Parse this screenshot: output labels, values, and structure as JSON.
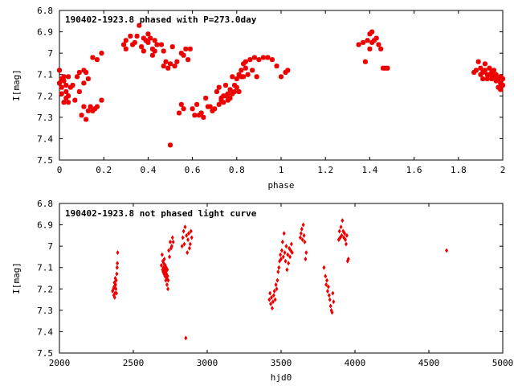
{
  "colors": {
    "points": "#ee0000",
    "frame": "#000000",
    "background": "#ffffff"
  },
  "chart_data": [
    {
      "type": "scatter",
      "title": "190402-1923.8 phased with P=273.0day",
      "xlabel": "phase",
      "ylabel": "I[mag]",
      "xlim": [
        0,
        2
      ],
      "ylim": [
        6.8,
        7.5
      ],
      "y_inverted": true,
      "grid": false,
      "x_ticks": [
        "0",
        "0.2",
        "0.4",
        "0.6",
        "0.8",
        "1",
        "1.2",
        "1.4",
        "1.6",
        "1.8",
        "2"
      ],
      "y_ticks": [
        "6.8",
        "6.9",
        "7",
        "7.1",
        "7.2",
        "7.3",
        "7.4",
        "7.5"
      ],
      "points": [
        [
          0.0,
          7.14
        ],
        [
          0.0,
          7.08
        ],
        [
          0.01,
          7.12
        ],
        [
          0.01,
          7.16
        ],
        [
          0.01,
          7.19
        ],
        [
          0.02,
          7.13
        ],
        [
          0.02,
          7.11
        ],
        [
          0.02,
          7.23
        ],
        [
          0.03,
          7.15
        ],
        [
          0.03,
          7.21
        ],
        [
          0.03,
          7.18
        ],
        [
          0.04,
          7.11
        ],
        [
          0.04,
          7.2
        ],
        [
          0.04,
          7.23
        ],
        [
          0.05,
          7.16
        ],
        [
          0.06,
          7.15
        ],
        [
          0.07,
          7.22
        ],
        [
          0.08,
          7.11
        ],
        [
          0.09,
          7.18
        ],
        [
          0.09,
          7.09
        ],
        [
          0.1,
          7.29
        ],
        [
          0.11,
          7.14
        ],
        [
          0.11,
          7.08
        ],
        [
          0.11,
          7.25
        ],
        [
          0.12,
          7.31
        ],
        [
          0.12,
          7.09
        ],
        [
          0.13,
          7.27
        ],
        [
          0.13,
          7.12
        ],
        [
          0.14,
          7.25
        ],
        [
          0.15,
          7.27
        ],
        [
          0.15,
          7.02
        ],
        [
          0.16,
          7.26
        ],
        [
          0.17,
          7.25
        ],
        [
          0.17,
          7.03
        ],
        [
          0.19,
          7.22
        ],
        [
          0.19,
          7.0
        ],
        [
          0.29,
          6.96
        ],
        [
          0.3,
          6.94
        ],
        [
          0.3,
          6.98
        ],
        [
          0.32,
          6.92
        ],
        [
          0.33,
          6.96
        ],
        [
          0.34,
          6.95
        ],
        [
          0.35,
          6.92
        ],
        [
          0.36,
          6.87
        ],
        [
          0.37,
          6.97
        ],
        [
          0.38,
          6.99
        ],
        [
          0.38,
          6.93
        ],
        [
          0.39,
          6.94
        ],
        [
          0.4,
          6.91
        ],
        [
          0.4,
          6.95
        ],
        [
          0.41,
          6.93
        ],
        [
          0.42,
          7.01
        ],
        [
          0.42,
          6.98
        ],
        [
          0.43,
          6.99
        ],
        [
          0.43,
          6.94
        ],
        [
          0.44,
          6.96
        ],
        [
          0.46,
          6.96
        ],
        [
          0.47,
          7.06
        ],
        [
          0.47,
          6.99
        ],
        [
          0.48,
          7.04
        ],
        [
          0.49,
          7.07
        ],
        [
          0.5,
          7.05
        ],
        [
          0.5,
          7.43
        ],
        [
          0.51,
          6.97
        ],
        [
          0.52,
          7.06
        ],
        [
          0.53,
          7.04
        ],
        [
          0.54,
          7.28
        ],
        [
          0.55,
          7.0
        ],
        [
          0.55,
          7.24
        ],
        [
          0.56,
          7.01
        ],
        [
          0.56,
          7.26
        ],
        [
          0.57,
          6.98
        ],
        [
          0.58,
          7.03
        ],
        [
          0.59,
          6.98
        ],
        [
          0.6,
          7.26
        ],
        [
          0.61,
          7.29
        ],
        [
          0.62,
          7.24
        ],
        [
          0.63,
          7.29
        ],
        [
          0.64,
          7.28
        ],
        [
          0.65,
          7.3
        ],
        [
          0.66,
          7.21
        ],
        [
          0.67,
          7.25
        ],
        [
          0.68,
          7.25
        ],
        [
          0.69,
          7.27
        ],
        [
          0.7,
          7.26
        ],
        [
          0.71,
          7.18
        ],
        [
          0.72,
          7.24
        ],
        [
          0.72,
          7.16
        ],
        [
          0.73,
          7.21
        ],
        [
          0.73,
          7.22
        ],
        [
          0.74,
          7.23
        ],
        [
          0.74,
          7.2
        ],
        [
          0.75,
          7.2
        ],
        [
          0.75,
          7.15
        ],
        [
          0.76,
          7.22
        ],
        [
          0.76,
          7.19
        ],
        [
          0.77,
          7.21
        ],
        [
          0.77,
          7.17
        ],
        [
          0.78,
          7.19
        ],
        [
          0.78,
          7.11
        ],
        [
          0.79,
          7.15
        ],
        [
          0.79,
          7.18
        ],
        [
          0.8,
          7.12
        ],
        [
          0.8,
          7.16
        ],
        [
          0.81,
          7.1
        ],
        [
          0.81,
          7.18
        ],
        [
          0.82,
          7.08
        ],
        [
          0.82,
          7.11
        ],
        [
          0.83,
          7.05
        ],
        [
          0.83,
          7.11
        ],
        [
          0.84,
          7.04
        ],
        [
          0.84,
          7.07
        ],
        [
          0.85,
          7.1
        ],
        [
          0.86,
          7.03
        ],
        [
          0.87,
          7.08
        ],
        [
          0.88,
          7.02
        ],
        [
          0.89,
          7.11
        ],
        [
          0.9,
          7.03
        ],
        [
          0.92,
          7.02
        ],
        [
          0.94,
          7.02
        ],
        [
          0.96,
          7.03
        ],
        [
          0.98,
          7.06
        ],
        [
          1.0,
          7.11
        ],
        [
          1.02,
          7.09
        ],
        [
          1.03,
          7.08
        ],
        [
          1.35,
          6.96
        ],
        [
          1.37,
          6.95
        ],
        [
          1.38,
          7.04
        ],
        [
          1.39,
          6.94
        ],
        [
          1.4,
          6.91
        ],
        [
          1.4,
          6.98
        ],
        [
          1.41,
          6.9
        ],
        [
          1.41,
          6.95
        ],
        [
          1.42,
          6.94
        ],
        [
          1.43,
          6.93
        ],
        [
          1.44,
          6.96
        ],
        [
          1.45,
          6.98
        ],
        [
          1.46,
          7.07
        ],
        [
          1.47,
          7.07
        ],
        [
          1.48,
          7.07
        ],
        [
          1.87,
          7.09
        ],
        [
          1.88,
          7.08
        ],
        [
          1.89,
          7.04
        ],
        [
          1.9,
          7.07
        ],
        [
          1.9,
          7.1
        ],
        [
          1.91,
          7.09
        ],
        [
          1.91,
          7.12
        ],
        [
          1.92,
          7.05
        ],
        [
          1.92,
          7.08
        ],
        [
          1.93,
          7.1
        ],
        [
          1.93,
          7.12
        ],
        [
          1.94,
          7.07
        ],
        [
          1.94,
          7.1
        ],
        [
          1.95,
          7.09
        ],
        [
          1.95,
          7.12
        ],
        [
          1.96,
          7.11
        ],
        [
          1.96,
          7.08
        ],
        [
          1.97,
          7.1
        ],
        [
          1.97,
          7.13
        ],
        [
          1.98,
          7.12
        ],
        [
          1.98,
          7.16
        ],
        [
          1.99,
          7.14
        ],
        [
          1.99,
          7.11
        ],
        [
          2.0,
          7.12
        ],
        [
          2.0,
          7.15
        ],
        [
          1.99,
          7.17
        ]
      ]
    },
    {
      "type": "scatter",
      "title": "190402-1923.8 not phased light curve",
      "xlabel": "hjd0",
      "ylabel": "I[mag]",
      "xlim": [
        2000,
        5000
      ],
      "ylim": [
        6.8,
        7.5
      ],
      "y_inverted": true,
      "grid": false,
      "x_ticks": [
        "2000",
        "2500",
        "3000",
        "3500",
        "4000",
        "4500",
        "5000"
      ],
      "y_ticks": [
        "6.8",
        "6.9",
        "7",
        "7.1",
        "7.2",
        "7.3",
        "7.4",
        "7.5"
      ],
      "points": [
        [
          2360,
          7.21
        ],
        [
          2365,
          7.2
        ],
        [
          2368,
          7.23
        ],
        [
          2370,
          7.19
        ],
        [
          2372,
          7.17
        ],
        [
          2374,
          7.24
        ],
        [
          2376,
          7.22
        ],
        [
          2378,
          7.15
        ],
        [
          2380,
          7.18
        ],
        [
          2382,
          7.2
        ],
        [
          2384,
          7.16
        ],
        [
          2386,
          7.22
        ],
        [
          2388,
          7.13
        ],
        [
          2390,
          7.1
        ],
        [
          2392,
          7.08
        ],
        [
          2394,
          7.03
        ],
        [
          2690,
          7.09
        ],
        [
          2695,
          7.04
        ],
        [
          2698,
          7.11
        ],
        [
          2700,
          7.07
        ],
        [
          2702,
          7.12
        ],
        [
          2704,
          7.1
        ],
        [
          2706,
          7.08
        ],
        [
          2708,
          7.13
        ],
        [
          2710,
          7.06
        ],
        [
          2712,
          7.11
        ],
        [
          2714,
          7.14
        ],
        [
          2716,
          7.09
        ],
        [
          2718,
          7.12
        ],
        [
          2720,
          7.16
        ],
        [
          2722,
          7.1
        ],
        [
          2724,
          7.13
        ],
        [
          2726,
          7.15
        ],
        [
          2728,
          7.18
        ],
        [
          2730,
          7.11
        ],
        [
          2732,
          7.14
        ],
        [
          2734,
          7.2
        ],
        [
          2736,
          7.16
        ],
        [
          2740,
          7.02
        ],
        [
          2745,
          7.05
        ],
        [
          2750,
          6.98
        ],
        [
          2755,
          7.01
        ],
        [
          2760,
          7.0
        ],
        [
          2765,
          6.96
        ],
        [
          2770,
          6.98
        ],
        [
          2830,
          7.0
        ],
        [
          2835,
          6.96
        ],
        [
          2840,
          6.93
        ],
        [
          2845,
          6.99
        ],
        [
          2850,
          6.91
        ],
        [
          2855,
          7.43
        ],
        [
          2860,
          6.95
        ],
        [
          2865,
          7.03
        ],
        [
          2870,
          6.97
        ],
        [
          2875,
          6.94
        ],
        [
          2880,
          7.01
        ],
        [
          2885,
          6.99
        ],
        [
          2890,
          6.93
        ],
        [
          2895,
          6.96
        ],
        [
          3420,
          7.25
        ],
        [
          3425,
          7.22
        ],
        [
          3430,
          7.27
        ],
        [
          3435,
          7.24
        ],
        [
          3440,
          7.29
        ],
        [
          3445,
          7.26
        ],
        [
          3450,
          7.23
        ],
        [
          3455,
          7.21
        ],
        [
          3460,
          7.25
        ],
        [
          3465,
          7.18
        ],
        [
          3470,
          7.2
        ],
        [
          3475,
          7.16
        ],
        [
          3480,
          7.12
        ],
        [
          3485,
          7.1
        ],
        [
          3490,
          7.07
        ],
        [
          3495,
          7.04
        ],
        [
          3500,
          7.06
        ],
        [
          3505,
          7.02
        ],
        [
          3510,
          6.98
        ],
        [
          3515,
          7.05
        ],
        [
          3520,
          6.94
        ],
        [
          3525,
          7.03
        ],
        [
          3530,
          7.07
        ],
        [
          3535,
          7.0
        ],
        [
          3540,
          7.11
        ],
        [
          3545,
          7.04
        ],
        [
          3550,
          7.08
        ],
        [
          3555,
          7.01
        ],
        [
          3560,
          7.05
        ],
        [
          3565,
          7.02
        ],
        [
          3570,
          6.99
        ],
        [
          3575,
          7.03
        ],
        [
          3630,
          6.96
        ],
        [
          3635,
          6.94
        ],
        [
          3640,
          6.92
        ],
        [
          3645,
          6.97
        ],
        [
          3650,
          6.9
        ],
        [
          3655,
          6.95
        ],
        [
          3660,
          6.98
        ],
        [
          3665,
          7.06
        ],
        [
          3670,
          7.03
        ],
        [
          3790,
          7.1
        ],
        [
          3800,
          7.14
        ],
        [
          3805,
          7.18
        ],
        [
          3810,
          7.16
        ],
        [
          3815,
          7.21
        ],
        [
          3820,
          7.19
        ],
        [
          3825,
          7.23
        ],
        [
          3830,
          7.25
        ],
        [
          3835,
          7.28
        ],
        [
          3840,
          7.3
        ],
        [
          3845,
          7.31
        ],
        [
          3850,
          7.22
        ],
        [
          3855,
          7.26
        ],
        [
          3890,
          6.97
        ],
        [
          3895,
          6.93
        ],
        [
          3900,
          6.96
        ],
        [
          3905,
          6.91
        ],
        [
          3910,
          6.95
        ],
        [
          3915,
          6.88
        ],
        [
          3920,
          6.93
        ],
        [
          3925,
          6.96
        ],
        [
          3930,
          6.94
        ],
        [
          3935,
          6.97
        ],
        [
          3940,
          6.99
        ],
        [
          3945,
          6.95
        ],
        [
          3950,
          7.07
        ],
        [
          3955,
          7.06
        ],
        [
          4620,
          7.02
        ]
      ]
    }
  ]
}
